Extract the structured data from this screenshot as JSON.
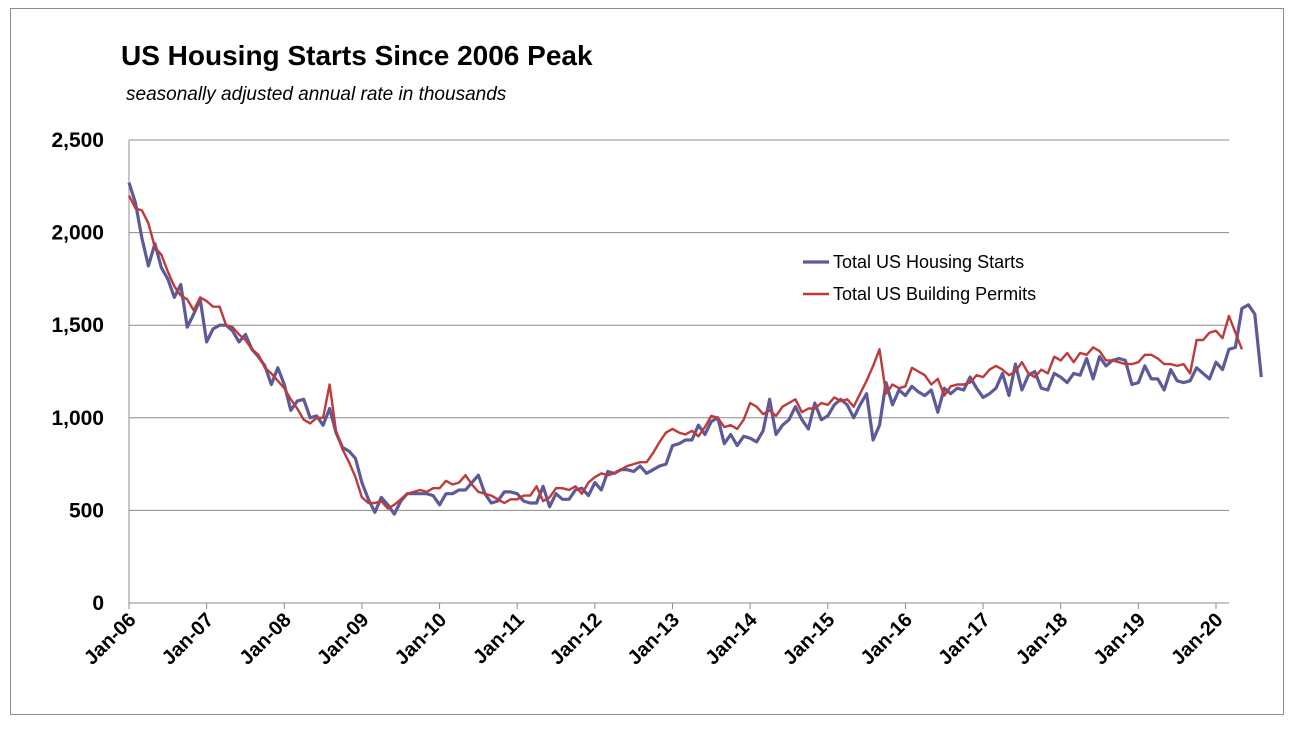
{
  "chart_data": {
    "type": "line",
    "title": "US Housing Starts Since 2006 Peak",
    "subtitle": "seasonally adjusted annual rate in thousands",
    "ylim": [
      0,
      2500
    ],
    "yticks": [
      0,
      500,
      1000,
      1500,
      2000,
      2500
    ],
    "ytick_labels": [
      "0",
      "500",
      "1,000",
      "1,500",
      "2,000",
      "2,500"
    ],
    "xtick_labels": [
      "Jan-06",
      "Jan-07",
      "Jan-08",
      "Jan-09",
      "Jan-10",
      "Jan-11",
      "Jan-12",
      "Jan-13",
      "Jan-14",
      "Jan-15",
      "Jan-16",
      "Jan-17",
      "Jan-18",
      "Jan-19",
      "Jan-20"
    ],
    "x_start": "Jan-06",
    "x_end": "Mar-20",
    "grid": "horizontal",
    "legend_position": "right",
    "series": [
      {
        "name": "Total US Housing Starts",
        "color": "#5c5a99",
        "values": [
          2270,
          2160,
          1970,
          1820,
          1940,
          1810,
          1750,
          1650,
          1720,
          1490,
          1560,
          1640,
          1410,
          1480,
          1500,
          1500,
          1470,
          1410,
          1450,
          1370,
          1330,
          1280,
          1180,
          1270,
          1180,
          1040,
          1090,
          1100,
          1000,
          1010,
          960,
          1050,
          920,
          840,
          820,
          780,
          650,
          560,
          490,
          570,
          530,
          480,
          550,
          590,
          590,
          590,
          590,
          580,
          530,
          590,
          590,
          610,
          610,
          650,
          690,
          590,
          540,
          550,
          600,
          600,
          590,
          550,
          540,
          540,
          630,
          520,
          590,
          560,
          560,
          610,
          620,
          580,
          650,
          610,
          710,
          700,
          720,
          720,
          710,
          740,
          700,
          720,
          740,
          750,
          850,
          860,
          880,
          880,
          960,
          910,
          980,
          1000,
          860,
          910,
          850,
          900,
          890,
          870,
          930,
          1100,
          910,
          960,
          990,
          1060,
          990,
          940,
          1080,
          990,
          1010,
          1070,
          1100,
          1070,
          1000,
          1070,
          1130,
          880,
          960,
          1190,
          1070,
          1150,
          1120,
          1170,
          1140,
          1120,
          1150,
          1030,
          1160,
          1130,
          1160,
          1150,
          1220,
          1160,
          1110,
          1130,
          1160,
          1240,
          1120,
          1290,
          1150,
          1230,
          1250,
          1160,
          1150,
          1240,
          1220,
          1190,
          1240,
          1230,
          1320,
          1210,
          1330,
          1280,
          1310,
          1320,
          1310,
          1180,
          1190,
          1280,
          1210,
          1210,
          1150,
          1260,
          1200,
          1190,
          1200,
          1270,
          1240,
          1210,
          1300,
          1260,
          1370,
          1380,
          1590,
          1610,
          1560,
          1220
        ]
      },
      {
        "name": "Total US Building Permits",
        "color": "#c0393b",
        "values": [
          2200,
          2130,
          2120,
          2050,
          1920,
          1880,
          1790,
          1710,
          1660,
          1640,
          1580,
          1650,
          1630,
          1600,
          1600,
          1500,
          1490,
          1450,
          1420,
          1370,
          1340,
          1270,
          1240,
          1200,
          1160,
          1100,
          1050,
          990,
          970,
          1000,
          1000,
          1180,
          930,
          830,
          760,
          680,
          570,
          540,
          540,
          550,
          510,
          530,
          560,
          590,
          600,
          610,
          600,
          620,
          620,
          660,
          640,
          650,
          690,
          640,
          600,
          590,
          580,
          560,
          540,
          560,
          560,
          580,
          580,
          630,
          550,
          570,
          620,
          620,
          610,
          630,
          590,
          650,
          680,
          700,
          690,
          700,
          720,
          740,
          750,
          760,
          760,
          810,
          870,
          920,
          940,
          920,
          910,
          930,
          900,
          950,
          1010,
          1000,
          950,
          960,
          940,
          990,
          1080,
          1060,
          1020,
          1040,
          1010,
          1060,
          1080,
          1100,
          1030,
          1050,
          1050,
          1080,
          1070,
          1110,
          1090,
          1100,
          1060,
          1130,
          1200,
          1280,
          1370,
          1130,
          1180,
          1160,
          1170,
          1270,
          1250,
          1230,
          1180,
          1210,
          1120,
          1170,
          1180,
          1180,
          1190,
          1230,
          1220,
          1260,
          1280,
          1260,
          1230,
          1250,
          1300,
          1240,
          1220,
          1260,
          1240,
          1330,
          1310,
          1350,
          1300,
          1350,
          1340,
          1380,
          1360,
          1310,
          1310,
          1300,
          1290,
          1290,
          1300,
          1340,
          1340,
          1320,
          1290,
          1290,
          1280,
          1290,
          1240,
          1420,
          1420,
          1460,
          1470,
          1430,
          1550,
          1460,
          1370
        ]
      }
    ]
  }
}
